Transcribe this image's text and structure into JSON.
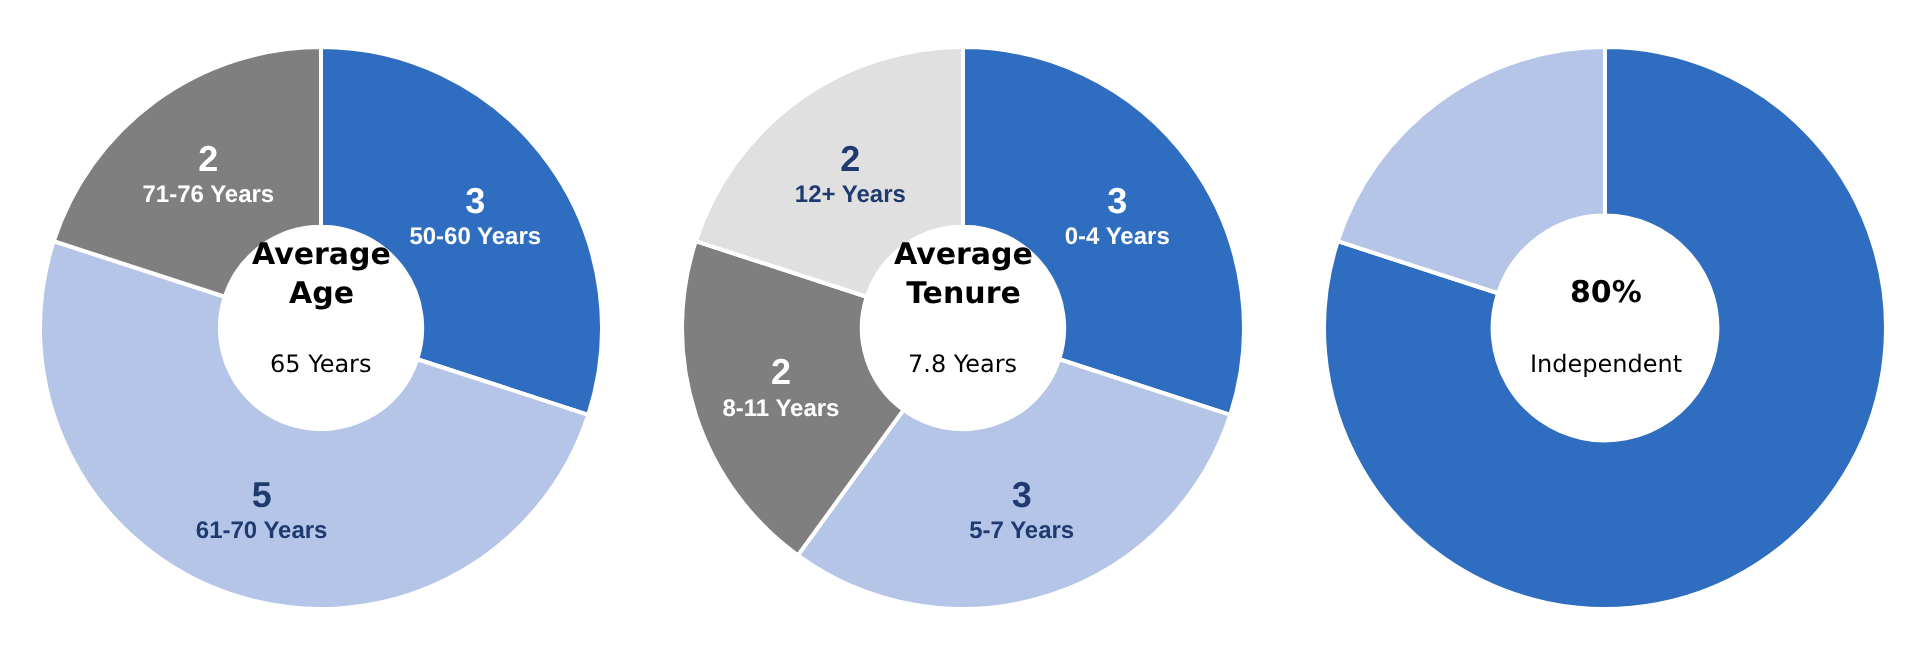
{
  "chart_data": [
    {
      "type": "donut",
      "categories": [
        "50-60 Years",
        "61-70 Years",
        "71-76 Years"
      ],
      "values": [
        3,
        5,
        2
      ],
      "colors": [
        "#2e6dbf",
        "#b4c5e8",
        "#7f7f7f"
      ],
      "data_labels": true,
      "legend": false,
      "annotations": [
        "Average Age",
        "65 Years"
      ]
    },
    {
      "type": "donut",
      "categories": [
        "0-4 Years",
        "5-7 Years",
        "8-11 Years",
        "12+ Years"
      ],
      "values": [
        3,
        3,
        2,
        2
      ],
      "colors": [
        "#2e6dbf",
        "#b4c5e8",
        "#7f7f7f",
        "#e0e0e0"
      ],
      "data_labels": true,
      "legend": false,
      "annotations": [
        "Average Tenure",
        "7.8 Years"
      ]
    },
    {
      "type": "donut",
      "categories": [
        null,
        null
      ],
      "values": [
        80,
        20
      ],
      "colors": [
        "#2e6dbf",
        "#b4c5e8"
      ],
      "legend": false,
      "annotations": [
        "80%",
        "Independent"
      ]
    }
  ]
}
